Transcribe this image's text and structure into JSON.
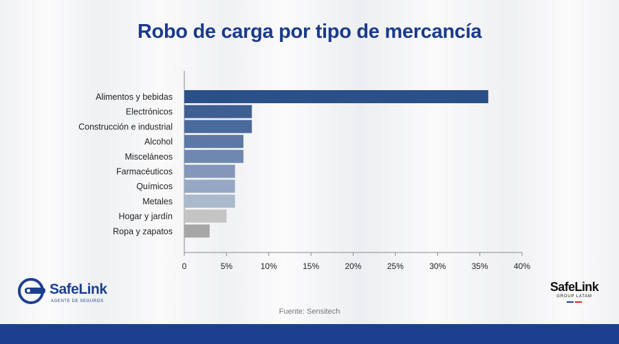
{
  "header": {
    "title": "Robo de carga por tipo de mercancía"
  },
  "footer": {
    "source": "Fuente: Sensitech",
    "left_logo": {
      "brand": "SafeLink",
      "tagline": "AGENTE DE SEGUROS",
      "icon": "key-icon"
    },
    "right_logo": {
      "brand": "SafeLink",
      "tagline": "GROUP LATAM"
    }
  },
  "colors": {
    "title": "#1b3a8a",
    "footer_bar": "#1d3f8f",
    "bars": [
      "#2b4f88",
      "#3f5f92",
      "#4a6a9c",
      "#5c79a6",
      "#6f88b0",
      "#8397ba",
      "#97a8c4",
      "#abb9cd",
      "#c4c4c4",
      "#a6a6a6"
    ]
  },
  "chart_data": {
    "type": "bar",
    "orientation": "horizontal",
    "categories": [
      "Alimentos y bebidas",
      "Electrónicos",
      "Construcción e industrial",
      "Alcohol",
      "Misceláneos",
      "Farmacéuticos",
      "Químicos",
      "Metales",
      "Hogar y jardín",
      "Ropa y zapatos"
    ],
    "values": [
      36,
      8,
      8,
      7,
      7,
      6,
      6,
      6,
      5,
      3
    ],
    "xlim": [
      0,
      40
    ],
    "xticks": [
      "0",
      "5%",
      "10%",
      "15%",
      "20%",
      "25%",
      "30%",
      "35%",
      "40%"
    ],
    "grid": false,
    "legend": "none"
  }
}
